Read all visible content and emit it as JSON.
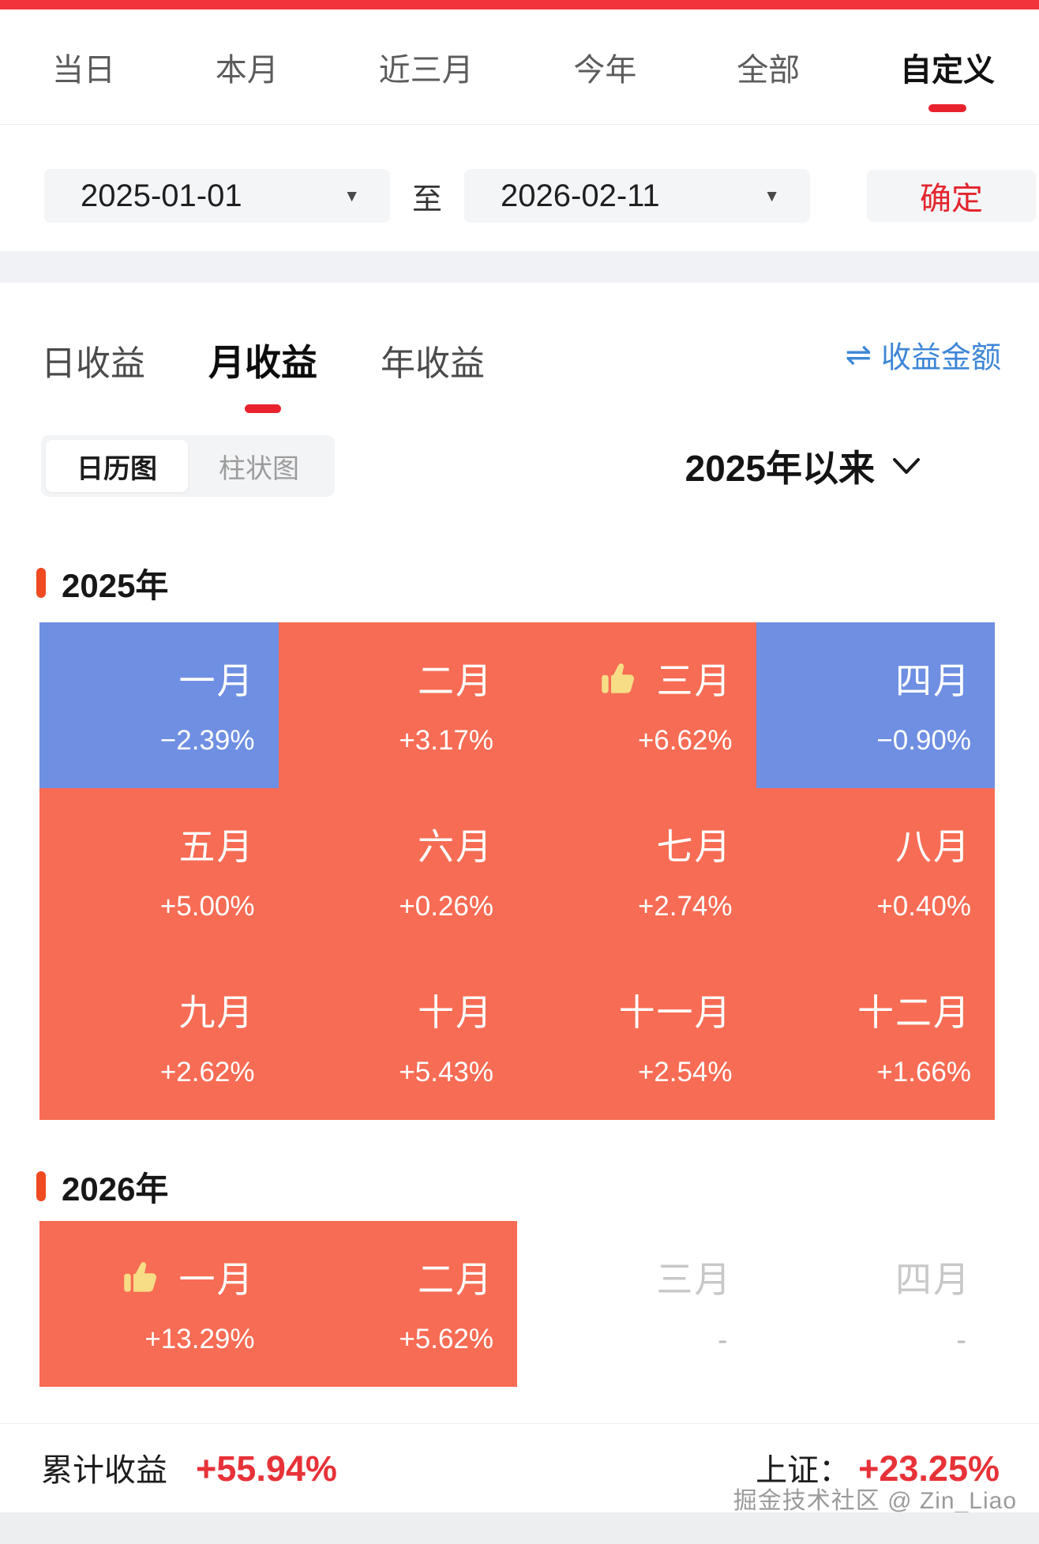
{
  "range_tabs": {
    "items": [
      {
        "label": "当日",
        "active": false
      },
      {
        "label": "本月",
        "active": false
      },
      {
        "label": "近三月",
        "active": false
      },
      {
        "label": "今年",
        "active": false
      },
      {
        "label": "全部",
        "active": false
      },
      {
        "label": "自定义",
        "active": true
      }
    ]
  },
  "date_filter": {
    "start_date": "2025-01-01",
    "to_label": "至",
    "end_date": "2026-02-11",
    "confirm_label": "确定"
  },
  "period_tabs": {
    "items": [
      {
        "label": "日收益",
        "active": false
      },
      {
        "label": "月收益",
        "active": true
      },
      {
        "label": "年收益",
        "active": false
      }
    ],
    "amount_link": "收益金额",
    "swap_glyph": "⇌"
  },
  "view_toggle": {
    "options": [
      {
        "label": "日历图",
        "active": true
      },
      {
        "label": "柱状图",
        "active": false
      }
    ]
  },
  "range_dropdown": {
    "label": "2025年以来"
  },
  "years": [
    {
      "label": "2025年",
      "months": [
        {
          "name": "一月",
          "value": "−2.39%",
          "state": "negative",
          "thumb": false
        },
        {
          "name": "二月",
          "value": "+3.17%",
          "state": "positive",
          "thumb": false
        },
        {
          "name": "三月",
          "value": "+6.62%",
          "state": "positive",
          "thumb": true
        },
        {
          "name": "四月",
          "value": "−0.90%",
          "state": "negative",
          "thumb": false
        },
        {
          "name": "五月",
          "value": "+5.00%",
          "state": "positive",
          "thumb": false
        },
        {
          "name": "六月",
          "value": "+0.26%",
          "state": "positive",
          "thumb": false
        },
        {
          "name": "七月",
          "value": "+2.74%",
          "state": "positive",
          "thumb": false
        },
        {
          "name": "八月",
          "value": "+0.40%",
          "state": "positive",
          "thumb": false
        },
        {
          "name": "九月",
          "value": "+2.62%",
          "state": "positive",
          "thumb": false
        },
        {
          "name": "十月",
          "value": "+5.43%",
          "state": "positive",
          "thumb": false
        },
        {
          "name": "十一月",
          "value": "+2.54%",
          "state": "positive",
          "thumb": false
        },
        {
          "name": "十二月",
          "value": "+1.66%",
          "state": "positive",
          "thumb": false
        }
      ]
    },
    {
      "label": "2026年",
      "months": [
        {
          "name": "一月",
          "value": "+13.29%",
          "state": "positive",
          "thumb": true
        },
        {
          "name": "二月",
          "value": "+5.62%",
          "state": "positive",
          "thumb": false
        },
        {
          "name": "三月",
          "value": "-",
          "state": "empty",
          "thumb": false
        },
        {
          "name": "四月",
          "value": "-",
          "state": "empty",
          "thumb": false
        }
      ]
    }
  ],
  "summary": {
    "label": "累计收益",
    "value": "+55.94%",
    "benchmark_label": "上证：",
    "benchmark_value": "+23.25%"
  },
  "watermark": "掘金技术社区 @ Zin_Liao",
  "colors": {
    "positive_cell": "#F76C54",
    "negative_cell": "#6F8FE2",
    "accent_red": "#E8232E",
    "top_bar_red": "#F2333C",
    "link_blue": "#3E86D6",
    "year_marker_orange": "#F04A20",
    "thumb_yellow": "#F6DD86"
  }
}
